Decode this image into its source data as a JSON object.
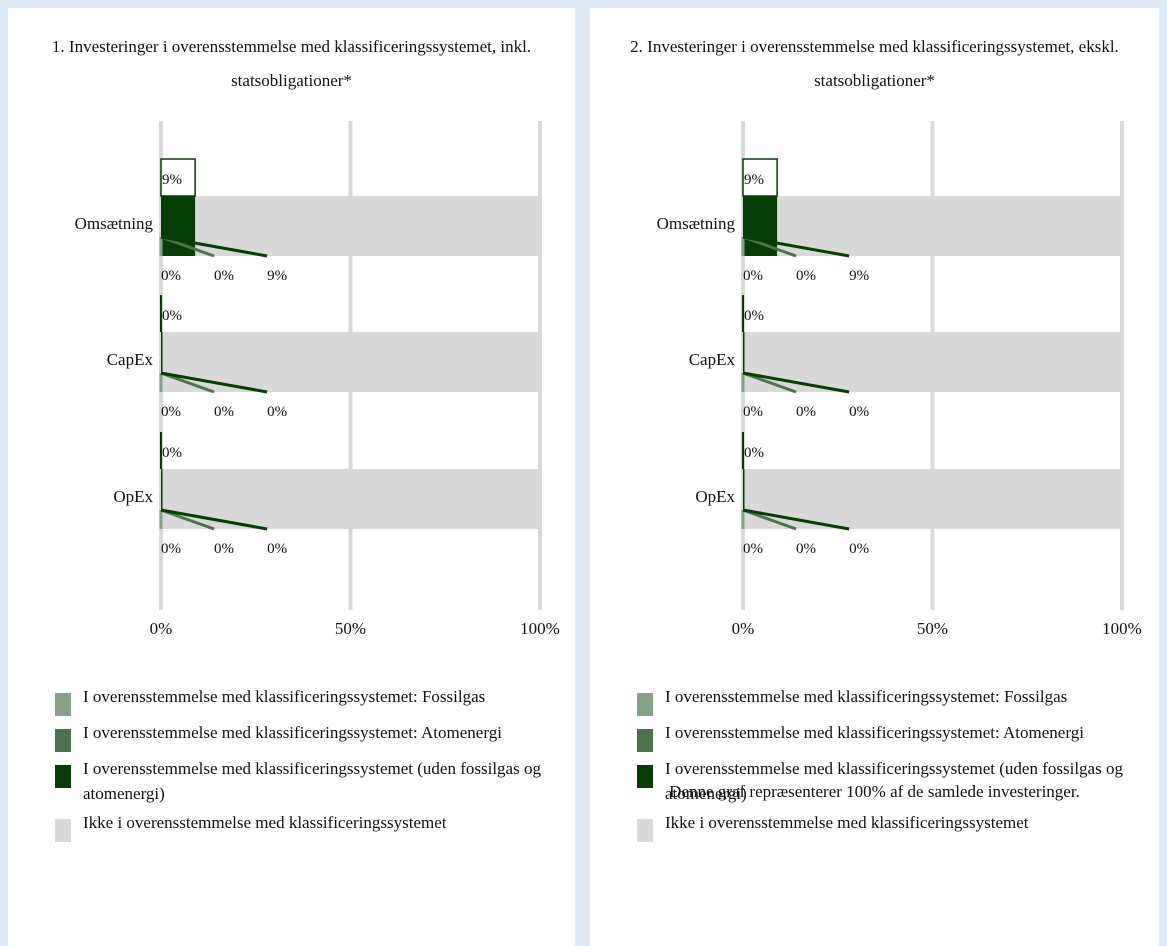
{
  "colors": {
    "fossilgas": "#86a286",
    "atomenergi": "#4c744c",
    "aligned_other": "#053d05",
    "not_aligned": "#d9d9d9",
    "grid": "#d9d9d9",
    "background": "#ddeaf6"
  },
  "legend": {
    "fossilgas": "I overensstemmelse med klassificeringssystemet: Fossilgas",
    "atomenergi": "I overensstemmelse med klassificeringssystemet: Atomenergi",
    "aligned_other": "I overensstemmelse med klassificeringssystemet (uden fossilgas og atomenergi)",
    "not_aligned": "Ikke i overensstemmelse med klassificeringssystemet"
  },
  "footnote": "Denne graf repræsenterer 100% af de samlede investeringer.",
  "chart_data": [
    {
      "type": "bar",
      "orientation": "horizontal",
      "stacked": true,
      "title": "1. Investeringer i overensstemmelse med klassificeringssystemet, inkl. statsobligationer*",
      "categories": [
        "Omsætning",
        "CapEx",
        "OpEx"
      ],
      "series": [
        {
          "name": "I overensstemmelse med klassificeringssystemet: Fossilgas",
          "values": [
            0,
            0,
            0
          ],
          "labels": [
            "0%",
            "0%",
            "0%"
          ]
        },
        {
          "name": "I overensstemmelse med klassificeringssystemet: Atomenergi",
          "values": [
            0,
            0,
            0
          ],
          "labels": [
            "0%",
            "0%",
            "0%"
          ]
        },
        {
          "name": "I overensstemmelse med klassificeringssystemet (uden fossilgas og atomenergi)",
          "values": [
            9,
            0,
            0
          ],
          "labels": [
            "9%",
            "0%",
            "0%"
          ]
        },
        {
          "name": "Ikke i overensstemmelse med klassificeringssystemet",
          "values": [
            91,
            100,
            100
          ]
        }
      ],
      "xticks": [
        "0%",
        "50%",
        "100%"
      ],
      "xlim": [
        0,
        100
      ],
      "grid": true
    },
    {
      "type": "bar",
      "orientation": "horizontal",
      "stacked": true,
      "title": "2. Investeringer i overensstemmelse med klassificeringssystemet, ekskl. statsobligationer*",
      "categories": [
        "Omsætning",
        "CapEx",
        "OpEx"
      ],
      "series": [
        {
          "name": "I overensstemmelse med klassificeringssystemet: Fossilgas",
          "values": [
            0,
            0,
            0
          ],
          "labels": [
            "0%",
            "0%",
            "0%"
          ]
        },
        {
          "name": "I overensstemmelse med klassificeringssystemet: Atomenergi",
          "values": [
            0,
            0,
            0
          ],
          "labels": [
            "0%",
            "0%",
            "0%"
          ]
        },
        {
          "name": "I overensstemmelse med klassificeringssystemet (uden fossilgas og atomenergi)",
          "values": [
            9,
            0,
            0
          ],
          "labels": [
            "9%",
            "0%",
            "0%"
          ]
        },
        {
          "name": "Ikke i overensstemmelse med klassificeringssystemet",
          "values": [
            91,
            100,
            100
          ]
        }
      ],
      "xticks": [
        "0%",
        "50%",
        "100%"
      ],
      "xlim": [
        0,
        100
      ],
      "grid": true
    }
  ]
}
